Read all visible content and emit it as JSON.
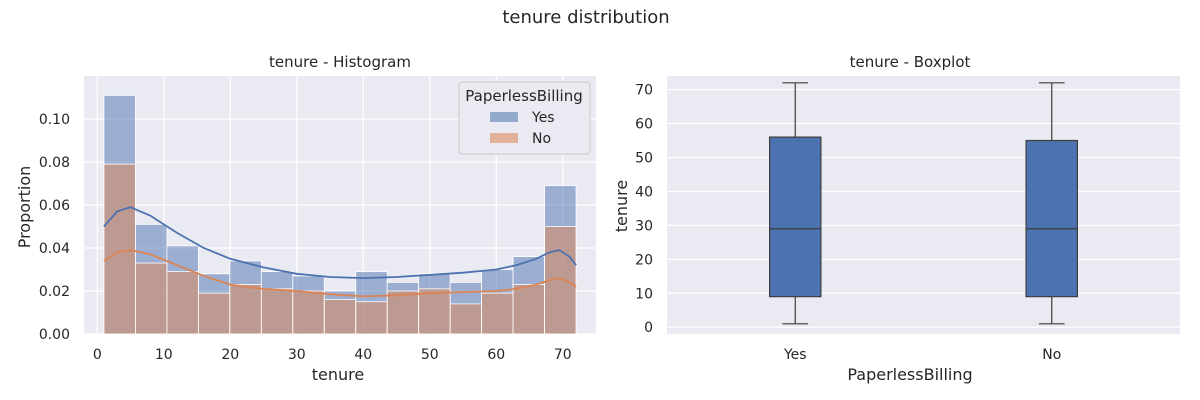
{
  "figure": {
    "title": "tenure distribution"
  },
  "colors": {
    "yes": "#4c72b0",
    "no": "#dd8452",
    "background": "#eaeaf2",
    "grid": "#ffffff"
  },
  "chart_data": [
    {
      "type": "histogram",
      "title": "tenure - Histogram",
      "xlabel": "tenure",
      "ylabel": "Proportion",
      "xlim": [
        -2,
        75
      ],
      "ylim": [
        0,
        0.12
      ],
      "xticks": [
        0,
        10,
        20,
        30,
        40,
        50,
        60,
        70
      ],
      "yticks": [
        0.0,
        0.02,
        0.04,
        0.06,
        0.08,
        0.1
      ],
      "ytick_labels": [
        "0.00",
        "0.02",
        "0.04",
        "0.06",
        "0.08",
        "0.10"
      ],
      "bin_edges": [
        1,
        5.73,
        10.47,
        15.2,
        19.93,
        24.67,
        29.4,
        34.13,
        38.87,
        43.6,
        48.33,
        53.07,
        57.8,
        62.53,
        67.27,
        72
      ],
      "legend": {
        "title": "PaperlessBilling",
        "position": "top-right"
      },
      "series": [
        {
          "name": "Yes",
          "values": [
            0.111,
            0.051,
            0.041,
            0.028,
            0.034,
            0.029,
            0.027,
            0.02,
            0.029,
            0.024,
            0.028,
            0.024,
            0.03,
            0.036,
            0.069
          ],
          "kde": [
            [
              1,
              0.05
            ],
            [
              3,
              0.057
            ],
            [
              5,
              0.059
            ],
            [
              8,
              0.055
            ],
            [
              12,
              0.047
            ],
            [
              16,
              0.04
            ],
            [
              20,
              0.035
            ],
            [
              25,
              0.031
            ],
            [
              30,
              0.028
            ],
            [
              35,
              0.0265
            ],
            [
              40,
              0.026
            ],
            [
              45,
              0.0265
            ],
            [
              50,
              0.0275
            ],
            [
              55,
              0.0285
            ],
            [
              60,
              0.03
            ],
            [
              63,
              0.032
            ],
            [
              66,
              0.035
            ],
            [
              68,
              0.038
            ],
            [
              69.5,
              0.039
            ],
            [
              71,
              0.036
            ],
            [
              72,
              0.032
            ]
          ]
        },
        {
          "name": "No",
          "values": [
            0.079,
            0.033,
            0.029,
            0.019,
            0.023,
            0.021,
            0.02,
            0.016,
            0.015,
            0.02,
            0.021,
            0.014,
            0.019,
            0.023,
            0.05
          ],
          "kde": [
            [
              1,
              0.034
            ],
            [
              3,
              0.038
            ],
            [
              5,
              0.039
            ],
            [
              8,
              0.037
            ],
            [
              12,
              0.032
            ],
            [
              16,
              0.027
            ],
            [
              20,
              0.023
            ],
            [
              25,
              0.021
            ],
            [
              30,
              0.02
            ],
            [
              35,
              0.0185
            ],
            [
              40,
              0.0175
            ],
            [
              45,
              0.018
            ],
            [
              50,
              0.019
            ],
            [
              55,
              0.0195
            ],
            [
              60,
              0.02
            ],
            [
              63,
              0.021
            ],
            [
              66,
              0.023
            ],
            [
              68,
              0.025
            ],
            [
              69.5,
              0.026
            ],
            [
              71,
              0.024
            ],
            [
              72,
              0.022
            ]
          ]
        }
      ]
    },
    {
      "type": "boxplot",
      "title": "tenure - Boxplot",
      "xlabel": "PaperlessBilling",
      "ylabel": "tenure",
      "ylim": [
        -2,
        74
      ],
      "yticks": [
        0,
        10,
        20,
        30,
        40,
        50,
        60,
        70
      ],
      "categories": [
        "Yes",
        "No"
      ],
      "boxes": [
        {
          "name": "Yes",
          "min": 1,
          "q1": 9,
          "median": 29,
          "q3": 56,
          "max": 72
        },
        {
          "name": "No",
          "min": 1,
          "q1": 9,
          "median": 29,
          "q3": 55,
          "max": 72
        }
      ]
    }
  ]
}
